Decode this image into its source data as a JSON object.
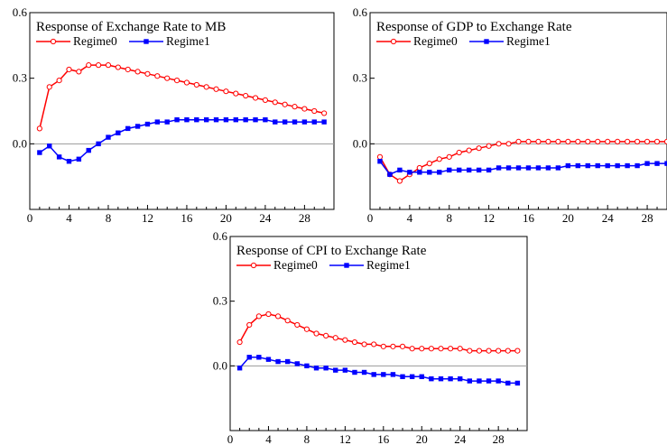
{
  "chart_data": [
    {
      "type": "line",
      "title": "Response of Exchange Rate to MB",
      "x": [
        1,
        2,
        3,
        4,
        5,
        6,
        7,
        8,
        9,
        10,
        11,
        12,
        13,
        14,
        15,
        16,
        17,
        18,
        19,
        20,
        21,
        22,
        23,
        24,
        25,
        26,
        27,
        28,
        29,
        30
      ],
      "xticks": [
        "0",
        "4",
        "8",
        "12",
        "16",
        "20",
        "24",
        "28"
      ],
      "yticks": [
        "0.0",
        "0.3",
        "0.6"
      ],
      "xlim": [
        0,
        31
      ],
      "ylim": [
        -0.3,
        0.6
      ],
      "series": [
        {
          "name": "Regime0",
          "color": "#ff0000",
          "marker": "open-circle",
          "values": [
            0.07,
            0.26,
            0.29,
            0.34,
            0.33,
            0.36,
            0.36,
            0.36,
            0.35,
            0.34,
            0.33,
            0.32,
            0.31,
            0.3,
            0.29,
            0.28,
            0.27,
            0.26,
            0.25,
            0.24,
            0.23,
            0.22,
            0.21,
            0.2,
            0.19,
            0.18,
            0.17,
            0.16,
            0.15,
            0.14
          ]
        },
        {
          "name": "Regime1",
          "color": "#0000ff",
          "marker": "filled-square",
          "values": [
            -0.04,
            -0.01,
            -0.06,
            -0.08,
            -0.07,
            -0.03,
            0.0,
            0.03,
            0.05,
            0.07,
            0.08,
            0.09,
            0.1,
            0.1,
            0.11,
            0.11,
            0.11,
            0.11,
            0.11,
            0.11,
            0.11,
            0.11,
            0.11,
            0.11,
            0.1,
            0.1,
            0.1,
            0.1,
            0.1,
            0.1
          ]
        }
      ]
    },
    {
      "type": "line",
      "title": "Response of GDP to Exchange Rate",
      "x": [
        1,
        2,
        3,
        4,
        5,
        6,
        7,
        8,
        9,
        10,
        11,
        12,
        13,
        14,
        15,
        16,
        17,
        18,
        19,
        20,
        21,
        22,
        23,
        24,
        25,
        26,
        27,
        28,
        29,
        30
      ],
      "xticks": [
        "0",
        "4",
        "8",
        "12",
        "16",
        "20",
        "24",
        "28"
      ],
      "yticks": [
        "0.0",
        "0.3",
        "0.6"
      ],
      "xlim": [
        0,
        30
      ],
      "ylim": [
        -0.3,
        0.6
      ],
      "series": [
        {
          "name": "Regime0",
          "color": "#ff0000",
          "marker": "open-circle",
          "values": [
            -0.06,
            -0.14,
            -0.17,
            -0.14,
            -0.11,
            -0.09,
            -0.07,
            -0.06,
            -0.04,
            -0.03,
            -0.02,
            -0.01,
            0.0,
            0.0,
            0.01,
            0.01,
            0.01,
            0.01,
            0.01,
            0.01,
            0.01,
            0.01,
            0.01,
            0.01,
            0.01,
            0.01,
            0.01,
            0.01,
            0.01,
            0.01
          ]
        },
        {
          "name": "Regime1",
          "color": "#0000ff",
          "marker": "filled-square",
          "values": [
            -0.08,
            -0.14,
            -0.12,
            -0.13,
            -0.13,
            -0.13,
            -0.13,
            -0.12,
            -0.12,
            -0.12,
            -0.12,
            -0.12,
            -0.11,
            -0.11,
            -0.11,
            -0.11,
            -0.11,
            -0.11,
            -0.11,
            -0.1,
            -0.1,
            -0.1,
            -0.1,
            -0.1,
            -0.1,
            -0.1,
            -0.1,
            -0.09,
            -0.09,
            -0.09
          ]
        }
      ]
    },
    {
      "type": "line",
      "title": "Response of CPI to Exchange Rate",
      "x": [
        1,
        2,
        3,
        4,
        5,
        6,
        7,
        8,
        9,
        10,
        11,
        12,
        13,
        14,
        15,
        16,
        17,
        18,
        19,
        20,
        21,
        22,
        23,
        24,
        25,
        26,
        27,
        28,
        29,
        30
      ],
      "xticks": [
        "0",
        "4",
        "8",
        "12",
        "16",
        "20",
        "24",
        "28"
      ],
      "yticks": [
        "0.0",
        "0.3",
        "0.6"
      ],
      "xlim": [
        0,
        31
      ],
      "ylim": [
        -0.3,
        0.6
      ],
      "series": [
        {
          "name": "Regime0",
          "color": "#ff0000",
          "marker": "open-circle",
          "values": [
            0.11,
            0.19,
            0.23,
            0.24,
            0.23,
            0.21,
            0.19,
            0.17,
            0.15,
            0.14,
            0.13,
            0.12,
            0.11,
            0.1,
            0.1,
            0.09,
            0.09,
            0.09,
            0.08,
            0.08,
            0.08,
            0.08,
            0.08,
            0.08,
            0.07,
            0.07,
            0.07,
            0.07,
            0.07,
            0.07
          ]
        },
        {
          "name": "Regime1",
          "color": "#0000ff",
          "marker": "filled-square",
          "values": [
            -0.01,
            0.04,
            0.04,
            0.03,
            0.02,
            0.02,
            0.01,
            0.0,
            -0.01,
            -0.01,
            -0.02,
            -0.02,
            -0.03,
            -0.03,
            -0.04,
            -0.04,
            -0.04,
            -0.05,
            -0.05,
            -0.05,
            -0.06,
            -0.06,
            -0.06,
            -0.06,
            -0.07,
            -0.07,
            -0.07,
            -0.07,
            -0.08,
            -0.08
          ]
        }
      ]
    }
  ]
}
